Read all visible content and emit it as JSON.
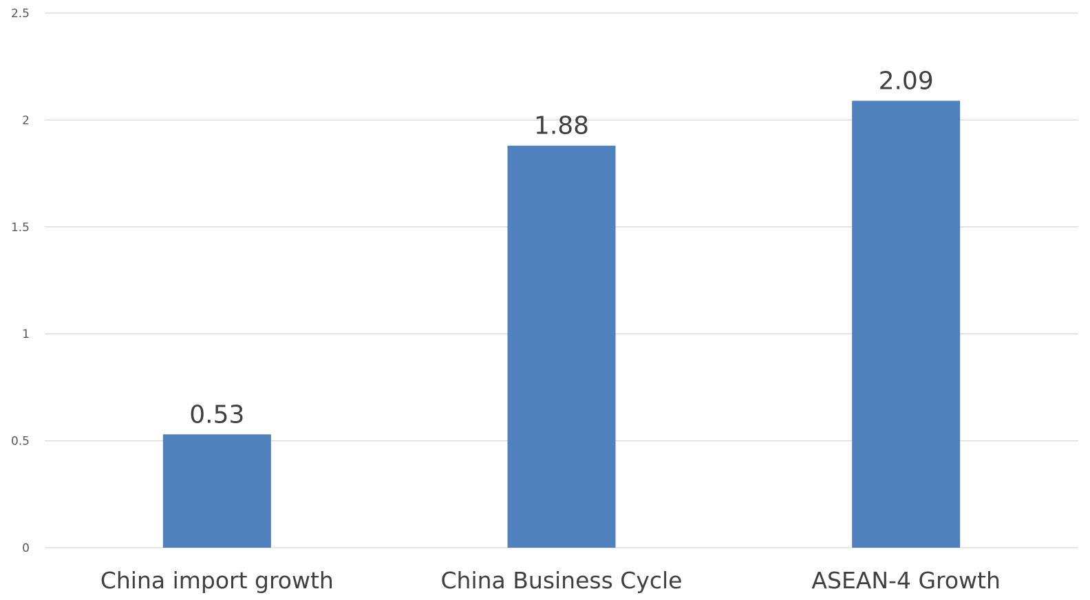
{
  "chart_data": {
    "type": "bar",
    "categories": [
      "China import growth",
      "China Business Cycle",
      "ASEAN-4 Growth"
    ],
    "series": [
      {
        "values": [
          0.53,
          1.88,
          2.09
        ],
        "color": "#4f81bd"
      }
    ],
    "data_labels": [
      "0.53",
      "1.88",
      "2.09"
    ],
    "y_ticks": [
      "0",
      "0.5",
      "1",
      "1.5",
      "2",
      "2.5"
    ],
    "y_tick_values": [
      0,
      0.5,
      1,
      1.5,
      2,
      2.5
    ],
    "ylim": [
      0,
      2.5
    ],
    "title": "",
    "xlabel": "",
    "ylabel": "",
    "grid": true,
    "legend": "none"
  }
}
